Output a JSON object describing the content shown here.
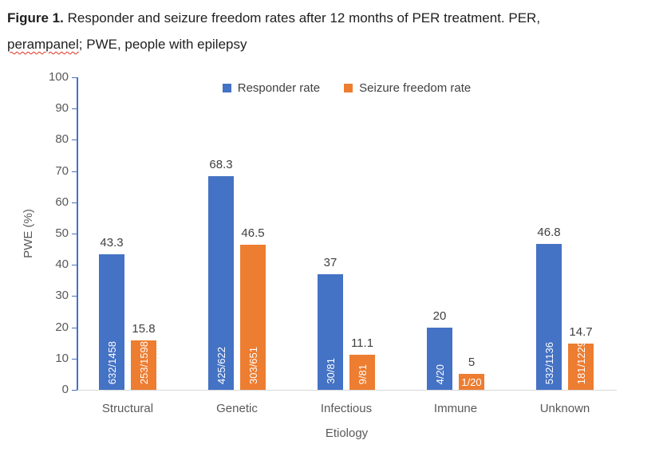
{
  "caption": {
    "figure_label": "Figure 1.",
    "line1": "Responder and seizure freedom rates after 12 months of PER treatment. PER,",
    "misspelled_word": "perampanel",
    "line2_rest": "; PWE, people with epilepsy",
    "misspelling_underline_color": "#e03020"
  },
  "chart_data": {
    "type": "bar",
    "title": "",
    "xlabel": "Etiology",
    "ylabel": "PWE (%)",
    "ylim": [
      0,
      100
    ],
    "ytick_interval": 10,
    "grid": false,
    "legend_position": "top-center",
    "categories": [
      "Structural",
      "Genetic",
      "Infectious",
      "Immune",
      "Unknown"
    ],
    "series": [
      {
        "name": "Responder rate",
        "color": "#4472C4",
        "values": [
          43.3,
          68.3,
          37,
          20,
          46.8
        ],
        "value_labels": [
          "43.3",
          "68.3",
          "37",
          "20",
          "46.8"
        ],
        "bar_inner_labels": [
          "632/1458",
          "425/622",
          "30/81",
          "4/20",
          "532/1136"
        ]
      },
      {
        "name": "Seizure freedom rate",
        "color": "#ED7D31",
        "values": [
          15.8,
          46.5,
          11.1,
          5,
          14.7
        ],
        "value_labels": [
          "15.8",
          "46.5",
          "11.1",
          "5",
          "14.7"
        ],
        "bar_inner_labels": [
          "253/1598",
          "303/651",
          "9/81",
          "1/20",
          "181/1229"
        ]
      }
    ],
    "axis_color": "#4472C4",
    "baseline_color": "#D9D9D9",
    "value_label_color": "#404040",
    "tick_label_color": "#595959"
  }
}
